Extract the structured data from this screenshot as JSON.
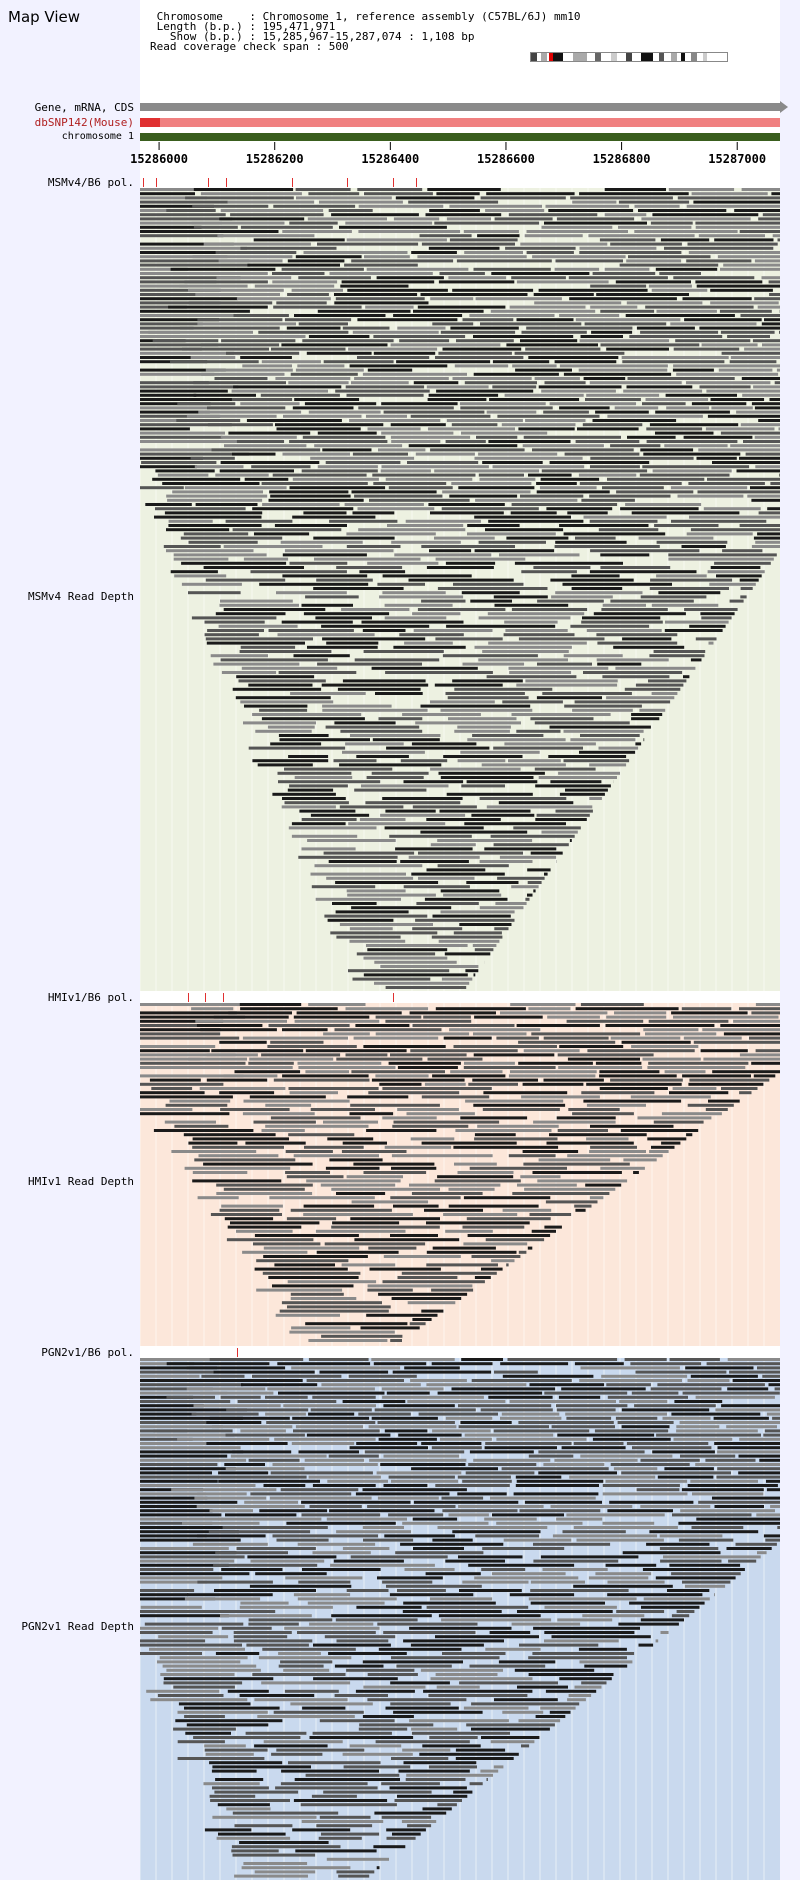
{
  "header": {
    "title": "Map View",
    "info_lines": [
      " Chromosome    : Chromosome 1, reference assembly (C57BL/6J) mm10",
      " Length (b.p.) : 195,471,971",
      "   Show (b.p.) : 15,285,967-15,287,074 : 1,108 bp",
      "Read coverage check span : 500"
    ]
  },
  "tracks": {
    "gene_label": "Gene, mRNA, CDS",
    "snp_label": "dbSNP142(Mouse)",
    "chrom_label": "chromosome 1",
    "colors": {
      "gene": "#8a8a8a",
      "snp": "#f08080",
      "snp_mark": "#e03030",
      "chrom": "#3a5e1e"
    }
  },
  "axis": {
    "ticks": [
      "15286000",
      "15286200",
      "15286400",
      "15286600",
      "15286800",
      "15287000"
    ],
    "tick_values": [
      15286000,
      15286200,
      15286400,
      15286600,
      15286800,
      15287000
    ],
    "start": 15285967,
    "end": 15287074
  },
  "sections": [
    {
      "pol_label": "MSMv4/B6 pol.",
      "depth_label": "MSMv4 Read Depth",
      "background": "#edf1e1",
      "snp_positions": [
        15285972,
        15285995,
        15286085,
        15286115,
        15286230,
        15286325,
        15286405,
        15286445
      ]
    },
    {
      "pol_label": "HMIv1/B6 pol.",
      "depth_label": "HMIv1 Read Depth",
      "background": "#fce7da",
      "snp_positions": [
        15286050,
        15286080,
        15286110,
        15286405
      ]
    },
    {
      "pol_label": "PGN2v1/B6 pol.",
      "depth_label": "PGN2v1 Read Depth",
      "background": "#c9d9ee",
      "snp_positions": [
        15286135
      ]
    }
  ],
  "colors": {
    "read_dark": "#1a1a1a",
    "read_mid": "#555555",
    "read_light": "#8a8a8a",
    "snp_tick": "#e03030",
    "panel_line": "#ffffff"
  }
}
